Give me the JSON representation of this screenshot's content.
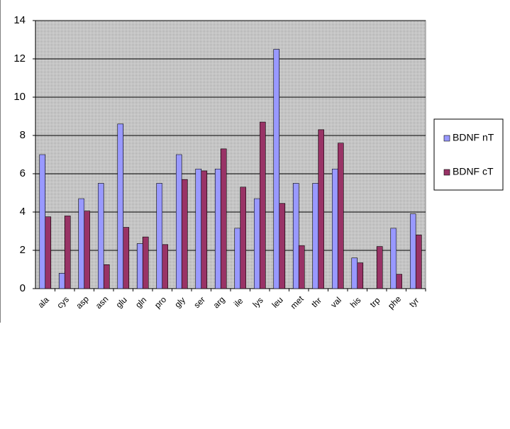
{
  "chart_data": {
    "type": "bar",
    "categories": [
      "ala",
      "cys",
      "asp",
      "asn",
      "glu",
      "gln",
      "pro",
      "gly",
      "ser",
      "arg",
      "ile",
      "lys",
      "leu",
      "met",
      "thr",
      "val",
      "his",
      "trp",
      "phe",
      "tyr"
    ],
    "series": [
      {
        "name": "BDNF nT",
        "color": "#9999ff",
        "values": [
          7.0,
          0.8,
          4.7,
          5.5,
          8.6,
          2.35,
          5.5,
          7.0,
          6.25,
          6.25,
          3.15,
          4.7,
          12.5,
          5.5,
          5.5,
          6.25,
          1.6,
          0,
          3.15,
          3.9
        ]
      },
      {
        "name": "BDNF cT",
        "color": "#993366",
        "values": [
          3.75,
          3.8,
          4.05,
          1.25,
          3.2,
          2.7,
          2.3,
          5.7,
          6.15,
          7.3,
          5.3,
          8.7,
          4.45,
          2.25,
          8.3,
          7.6,
          1.35,
          2.2,
          0.75,
          2.8
        ]
      }
    ],
    "ylim": [
      0,
      14
    ],
    "yticks": [
      0,
      2,
      4,
      6,
      8,
      10,
      12,
      14
    ],
    "grid": true,
    "legend": "right"
  }
}
